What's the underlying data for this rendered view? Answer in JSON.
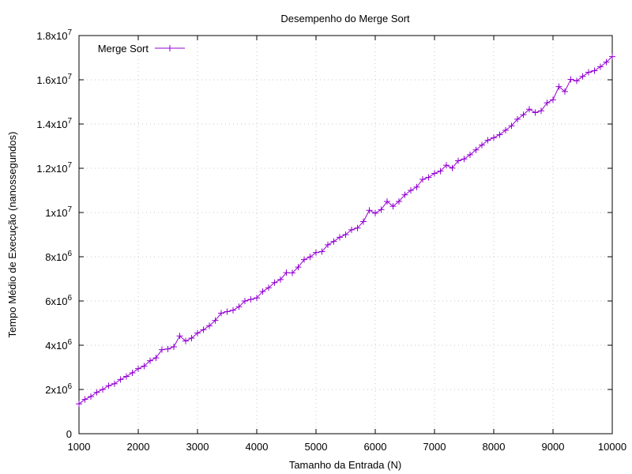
{
  "chart_data": {
    "type": "line",
    "title": "Desempenho do Merge Sort",
    "xlabel": "Tamanho da Entrada (N)",
    "ylabel": "Tempo Médio de Execução (nanossegundos)",
    "xlim": [
      1000,
      10000
    ],
    "ylim": [
      0,
      18000000
    ],
    "x_ticks": [
      1000,
      2000,
      3000,
      4000,
      5000,
      6000,
      7000,
      8000,
      9000,
      10000
    ],
    "y_ticks": [
      {
        "value": 0,
        "mantissa": "0",
        "exp": ""
      },
      {
        "value": 2000000,
        "mantissa": "2x10",
        "exp": "6"
      },
      {
        "value": 4000000,
        "mantissa": "4x10",
        "exp": "6"
      },
      {
        "value": 6000000,
        "mantissa": "6x10",
        "exp": "6"
      },
      {
        "value": 8000000,
        "mantissa": "8x10",
        "exp": "6"
      },
      {
        "value": 10000000,
        "mantissa": "1x10",
        "exp": "7"
      },
      {
        "value": 12000000,
        "mantissa": "1.2x10",
        "exp": "7"
      },
      {
        "value": 14000000,
        "mantissa": "1.4x10",
        "exp": "7"
      },
      {
        "value": 16000000,
        "mantissa": "1.6x10",
        "exp": "7"
      },
      {
        "value": 18000000,
        "mantissa": "1.8x10",
        "exp": "7"
      }
    ],
    "grid": true,
    "legend_position": "top-left",
    "series": [
      {
        "name": "Merge Sort",
        "color": "#9400d3",
        "marker": "plus",
        "x": [
          1000,
          1100,
          1200,
          1300,
          1400,
          1500,
          1600,
          1700,
          1800,
          1900,
          2000,
          2100,
          2200,
          2300,
          2400,
          2500,
          2600,
          2700,
          2800,
          2900,
          3000,
          3100,
          3200,
          3300,
          3400,
          3500,
          3600,
          3700,
          3800,
          3900,
          4000,
          4100,
          4200,
          4300,
          4400,
          4500,
          4600,
          4700,
          4800,
          4900,
          5000,
          5100,
          5200,
          5300,
          5400,
          5500,
          5600,
          5700,
          5800,
          5900,
          6000,
          6100,
          6200,
          6300,
          6400,
          6500,
          6600,
          6700,
          6800,
          6900,
          7000,
          7100,
          7200,
          7300,
          7400,
          7500,
          7600,
          7700,
          7800,
          7900,
          8000,
          8100,
          8200,
          8300,
          8400,
          8500,
          8600,
          8700,
          8800,
          8900,
          9000,
          9100,
          9200,
          9300,
          9400,
          9500,
          9600,
          9700,
          9800,
          9900,
          10000
        ],
        "y": [
          1350000,
          1550000,
          1680000,
          1870000,
          2000000,
          2170000,
          2260000,
          2450000,
          2590000,
          2750000,
          2940000,
          3060000,
          3300000,
          3430000,
          3800000,
          3830000,
          3930000,
          4420000,
          4190000,
          4320000,
          4550000,
          4700000,
          4880000,
          5120000,
          5450000,
          5520000,
          5580000,
          5740000,
          6000000,
          6070000,
          6140000,
          6430000,
          6600000,
          6830000,
          6970000,
          7280000,
          7270000,
          7530000,
          7870000,
          7990000,
          8190000,
          8230000,
          8540000,
          8690000,
          8880000,
          9000000,
          9220000,
          9300000,
          9590000,
          10100000,
          9970000,
          10130000,
          10500000,
          10280000,
          10500000,
          10800000,
          11000000,
          11150000,
          11500000,
          11590000,
          11770000,
          11870000,
          12140000,
          12010000,
          12340000,
          12420000,
          12610000,
          12830000,
          13050000,
          13270000,
          13380000,
          13520000,
          13720000,
          13920000,
          14220000,
          14420000,
          14670000,
          14520000,
          14600000,
          14960000,
          15100000,
          15690000,
          15470000,
          16020000,
          15950000,
          16150000,
          16340000,
          16410000,
          16590000,
          16800000,
          17050000
        ]
      }
    ]
  }
}
